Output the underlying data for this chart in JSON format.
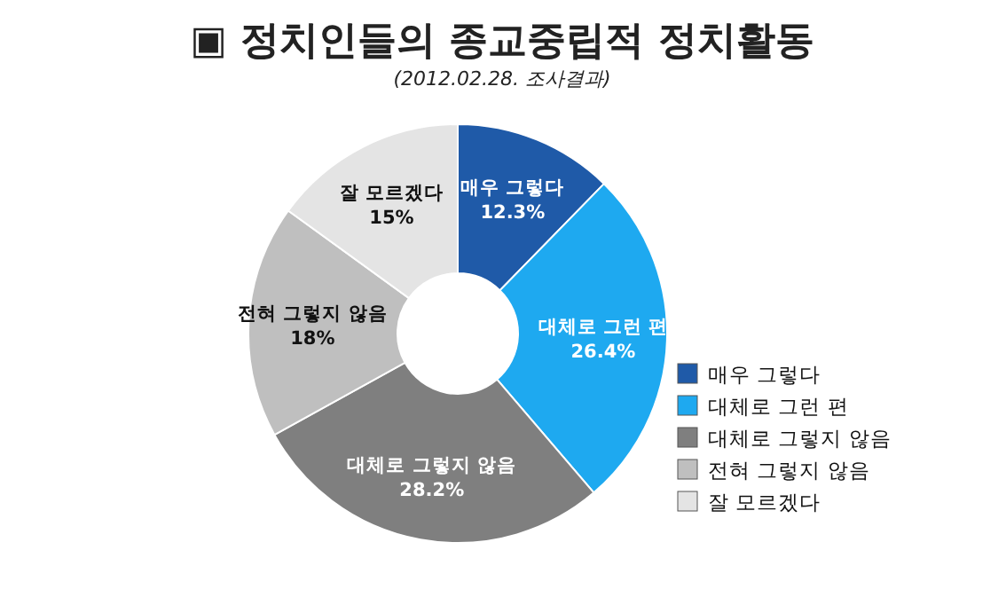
{
  "chart_data": {
    "type": "donut",
    "title": "▣ 정치인들의 종교중립적 정치활동",
    "subtitle": "(2012.02.28. 조사결과)",
    "categories": [
      "매우 그렇다",
      "대체로 그런 편",
      "대체로 그렇지 않음",
      "전혀 그렇지 않음",
      "잘 모르겠다"
    ],
    "values": [
      12.3,
      26.4,
      28.2,
      18,
      15
    ],
    "colors": [
      "#1f5aa8",
      "#1ea9f0",
      "#7f7f7f",
      "#bfbfbf",
      "#e4e4e4"
    ],
    "value_labels": [
      "12.3%",
      "26.4%",
      "28.2%",
      "18%",
      "15%"
    ],
    "legend": "right"
  }
}
